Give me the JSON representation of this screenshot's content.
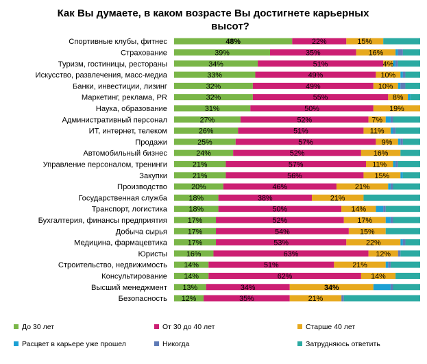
{
  "chart_data": {
    "type": "bar",
    "stacked": true,
    "orientation": "horizontal",
    "title_lines": [
      "Как Вы думаете, в каком возрасте Вы достигнете карьерных",
      "высот?"
    ],
    "categories": [
      "Спортивные клубы, фитнес",
      "Страхование",
      "Туризм, гостиницы, рестораны",
      "Искусство, развлечения, масс-медиа",
      "Банки, инвестиции, лизинг",
      "Маркетинг, реклама, PR",
      "Наука, образование",
      "Административный персонал",
      "ИТ, интернет, телеком",
      "Продажи",
      "Автомобильный бизнес",
      "Управление персоналом, тренинги",
      "Закупки",
      "Производство",
      "Государственная служба",
      "Транспорт, логистика",
      "Бухгалтерия,  финансы предприятия",
      "Добыча сырья",
      "Медицина, фармацевтика",
      "Юристы",
      "Строительство, недвижимость",
      "Консультирование",
      "Высший менеджмент",
      "Безопасность"
    ],
    "series": [
      {
        "name": "До 30 лет",
        "color": "#7ab648",
        "values": [
          48,
          39,
          34,
          33,
          32,
          32,
          31,
          27,
          26,
          25,
          24,
          21,
          21,
          20,
          18,
          18,
          17,
          17,
          17,
          16,
          14,
          14,
          13,
          12
        ]
      },
      {
        "name": "От 30 до 40 лет",
        "color": "#cc1f73",
        "values": [
          22,
          35,
          51,
          49,
          49,
          55,
          50,
          52,
          51,
          57,
          52,
          57,
          56,
          46,
          38,
          50,
          52,
          54,
          53,
          63,
          51,
          62,
          34,
          35
        ]
      },
      {
        "name": "Старше 40 лет",
        "color": "#e7a91e",
        "values": [
          15,
          16,
          4,
          10,
          10,
          8,
          19,
          7,
          11,
          9,
          16,
          11,
          15,
          21,
          21,
          14,
          17,
          15,
          22,
          12,
          21,
          14,
          34,
          21
        ]
      },
      {
        "name": "Расцвет в карьере уже прошел",
        "color": "#1ba0d4",
        "values": [
          0,
          1,
          1,
          1,
          1,
          1,
          0,
          2,
          1,
          1,
          0,
          1,
          1,
          1,
          0,
          3,
          2,
          0,
          1,
          0,
          1,
          0,
          7,
          0
        ]
      },
      {
        "name": "Никогда",
        "color": "#5f7bb6",
        "values": [
          0,
          2,
          1,
          1,
          2,
          0,
          0,
          1,
          1,
          1,
          0,
          1,
          0,
          1,
          0,
          1,
          1,
          0,
          1,
          1,
          1,
          0,
          1,
          1
        ]
      },
      {
        "name": "Затрудняюсь ответить",
        "color": "#2baaa2",
        "values": [
          15,
          7,
          9,
          6,
          6,
          4,
          0,
          11,
          10,
          7,
          8,
          9,
          7,
          11,
          23,
          14,
          11,
          14,
          6,
          8,
          12,
          10,
          11,
          31
        ]
      }
    ],
    "labeled_series": [
      "До 30 лет",
      "От 30 до 40 лет",
      "Старше 40 лет"
    ],
    "label_suffix": "%",
    "bold_labels": [
      [
        0,
        0
      ],
      [
        22,
        2
      ]
    ],
    "xlim": [
      0,
      100
    ],
    "grid": false,
    "legend_position": "bottom"
  }
}
